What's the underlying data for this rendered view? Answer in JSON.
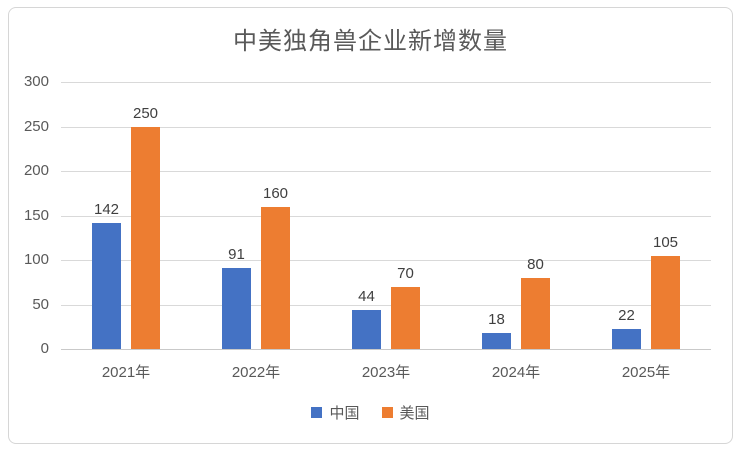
{
  "window": {
    "background": "#ffffff",
    "border_color": "#d6d6d6"
  },
  "chart_data": {
    "type": "bar",
    "title": "中美独角兽企业新增数量",
    "categories": [
      "2021年",
      "2022年",
      "2023年",
      "2024年",
      "2025年"
    ],
    "series": [
      {
        "name": "中国",
        "color": "#4472c4",
        "values": [
          142,
          91,
          44,
          18,
          22
        ]
      },
      {
        "name": "美国",
        "color": "#ed7d31",
        "values": [
          250,
          160,
          70,
          80,
          105
        ]
      }
    ],
    "data_labels": [
      [
        "142",
        "91",
        "44",
        "18",
        "22"
      ],
      [
        "250",
        "160",
        "70",
        "80",
        "105"
      ]
    ],
    "xlabel": "",
    "ylabel": "",
    "ylim": [
      0,
      300
    ],
    "ytick_step": 50,
    "yticks": [
      "0",
      "50",
      "100",
      "150",
      "200",
      "250",
      "300"
    ],
    "grid": true,
    "gridline_color": "#d9d9d9",
    "legend_position": "bottom",
    "axis_label_color": "#595959",
    "data_label_color": "#3f3f3f",
    "title_color": "#595959"
  }
}
